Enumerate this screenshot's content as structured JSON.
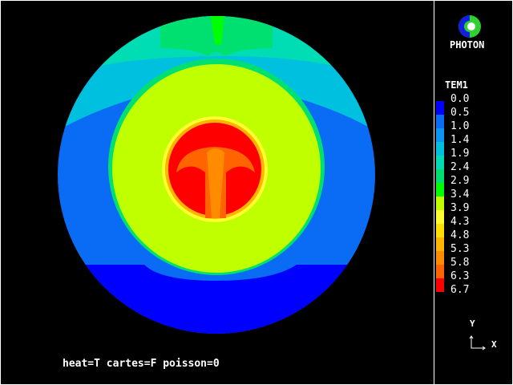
{
  "caption": "heat=T cartes=F poisson=0",
  "logo": {
    "text": "PHOTON"
  },
  "legend": {
    "title": "TEM1",
    "labels": [
      "0.0",
      "0.5",
      "1.0",
      "1.4",
      "1.9",
      "2.4",
      "2.9",
      "3.4",
      "3.9",
      "4.3",
      "4.8",
      "5.3",
      "5.8",
      "6.3",
      "6.7"
    ],
    "colors": [
      "#0000ff",
      "#0a6cf5",
      "#0a96f0",
      "#00c0e0",
      "#00dcb4",
      "#00e070",
      "#00ff00",
      "#c0ff00",
      "#ffff30",
      "#ffe000",
      "#ffb400",
      "#ff8c00",
      "#ff6400",
      "#ff0000"
    ]
  },
  "axes": {
    "y": "Y",
    "x": "X"
  }
}
